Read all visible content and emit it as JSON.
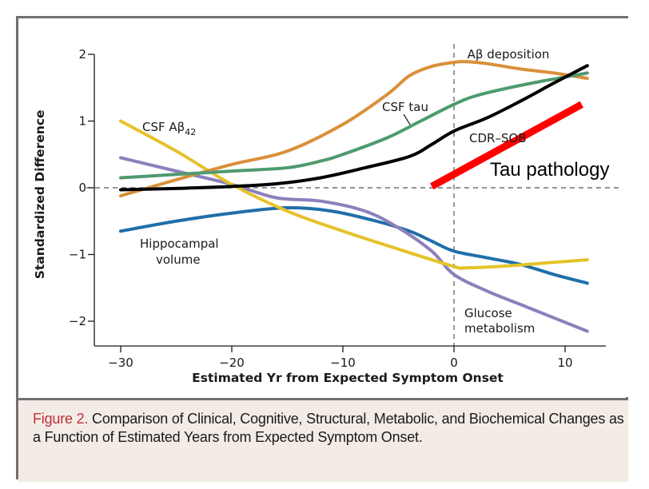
{
  "chart_data": {
    "type": "line",
    "title": "",
    "xlabel": "Estimated Yr from Expected Symptom Onset",
    "ylabel": "Standardized Difference",
    "xlim": [
      -33,
      13
    ],
    "ylim": [
      -2.2,
      2.1
    ],
    "xticks": [
      -30,
      -20,
      -10,
      0,
      10
    ],
    "xtick_labels": [
      "−30",
      "−20",
      "−10",
      "0",
      "10"
    ],
    "yticks": [
      2,
      1,
      0,
      -1,
      -2
    ],
    "ytick_labels": [
      "2",
      "1",
      "0",
      "−1",
      "−2"
    ],
    "reference_lines": [
      {
        "axis": "y",
        "value": 0,
        "style": "dashed"
      },
      {
        "axis": "x",
        "value": 0,
        "style": "dashed"
      }
    ],
    "grid": false,
    "series": [
      {
        "name": "Aβ deposition",
        "color": "#d9903a",
        "x": [
          -30,
          -25,
          -20,
          -15,
          -10,
          -6,
          -4,
          -2,
          0,
          1,
          3,
          6,
          9,
          12
        ],
        "y": [
          -0.12,
          0.12,
          0.35,
          0.55,
          0.95,
          1.4,
          1.68,
          1.82,
          1.88,
          1.89,
          1.86,
          1.78,
          1.72,
          1.64
        ]
      },
      {
        "name": "CSF tau",
        "color": "#4e9a6e",
        "x": [
          -30,
          -25,
          -20,
          -15,
          -12,
          -10,
          -6,
          -3,
          0,
          2,
          5,
          8,
          10,
          12
        ],
        "y": [
          0.15,
          0.2,
          0.25,
          0.3,
          0.4,
          0.5,
          0.75,
          1.0,
          1.25,
          1.38,
          1.5,
          1.6,
          1.66,
          1.72
        ]
      },
      {
        "name": "CDR–SOB",
        "color": "#000000",
        "x": [
          -30,
          -25,
          -20,
          -16,
          -12,
          -8,
          -4,
          -2,
          0,
          3,
          6,
          9,
          12
        ],
        "y": [
          -0.03,
          -0.01,
          0.02,
          0.06,
          0.15,
          0.3,
          0.47,
          0.65,
          0.85,
          1.05,
          1.3,
          1.57,
          1.83
        ]
      },
      {
        "name": "CSF Aβ₄₂",
        "color": "#e5c22a",
        "x": [
          -30,
          -25,
          -20,
          -15,
          -10,
          -5,
          0,
          1,
          4,
          8,
          12
        ],
        "y": [
          1.0,
          0.55,
          0.05,
          -0.35,
          -0.65,
          -0.92,
          -1.18,
          -1.2,
          -1.18,
          -1.13,
          -1.08
        ]
      },
      {
        "name": "Glucose metabolism",
        "color": "#8c80bc",
        "x": [
          -30,
          -25,
          -20,
          -16,
          -12,
          -8,
          -5,
          -2,
          0,
          3,
          6,
          9,
          12
        ],
        "y": [
          0.45,
          0.25,
          0.05,
          -0.15,
          -0.2,
          -0.35,
          -0.6,
          -0.95,
          -1.3,
          -1.55,
          -1.75,
          -1.95,
          -2.15
        ]
      },
      {
        "name": "Hippocampal volume",
        "color": "#1f6fa8",
        "x": [
          -30,
          -25,
          -20,
          -15,
          -11,
          -7,
          -4,
          -2,
          0,
          3,
          6,
          9,
          12
        ],
        "y": [
          -0.65,
          -0.5,
          -0.38,
          -0.3,
          -0.35,
          -0.5,
          -0.65,
          -0.8,
          -0.95,
          -1.05,
          -1.15,
          -1.3,
          -1.43
        ]
      },
      {
        "name": "Tau pathology",
        "color": "#ff0000",
        "annotation_overlay": true,
        "x": [
          -2,
          11.5
        ],
        "y": [
          0.02,
          1.25
        ]
      }
    ],
    "annotations": [
      {
        "text": "Aβ deposition",
        "near_series": "Aβ deposition"
      },
      {
        "text": "CSF tau",
        "near_series": "CSF tau",
        "leader_line": true
      },
      {
        "text": "CDR–SOB",
        "near_series": "CDR–SOB"
      },
      {
        "text": "CSF Aβ",
        "subscript": "42",
        "near_series": "CSF Aβ₄₂"
      },
      {
        "text": "Hippocampal",
        "text2": "volume",
        "near_series": "Hippocampal volume"
      },
      {
        "text": "Glucose",
        "text2": "metabolism",
        "near_series": "Glucose metabolism"
      },
      {
        "text": "Tau pathology",
        "near_series": "Tau pathology"
      }
    ]
  },
  "caption": {
    "label": "Figure 2.",
    "text": " Comparison of Clinical, Cognitive, Structural, Metabolic, and Biochemical Changes as a Function of Estimated Years from Expected Symptom Onset."
  }
}
